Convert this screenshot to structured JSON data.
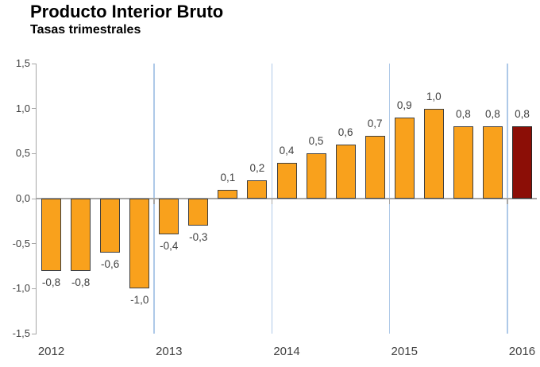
{
  "header": {
    "title": "Producto Interior Bruto",
    "subtitle": "Tasas trimestrales"
  },
  "chart_data": {
    "type": "bar",
    "title": "Producto Interior Bruto",
    "subtitle": "Tasas trimestrales",
    "xlabel": "",
    "ylabel": "",
    "ylim": [
      -1.5,
      1.5
    ],
    "y_ticks": [
      {
        "label": "1,5",
        "value": 1.5
      },
      {
        "label": "1,0",
        "value": 1.0
      },
      {
        "label": "0,5",
        "value": 0.5
      },
      {
        "label": "0,0",
        "value": 0.0
      },
      {
        "label": "-0,5",
        "value": -0.5
      },
      {
        "label": "-1,0",
        "value": -1.0
      },
      {
        "label": "-1,5",
        "value": -1.5
      }
    ],
    "groups": [
      {
        "label": "2012",
        "count": 4
      },
      {
        "label": "2013",
        "count": 4
      },
      {
        "label": "2014",
        "count": 4
      },
      {
        "label": "2015",
        "count": 4
      },
      {
        "label": "2016",
        "count": 1
      }
    ],
    "values": [
      -0.8,
      -0.8,
      -0.6,
      -1.0,
      -0.4,
      -0.3,
      0.1,
      0.2,
      0.4,
      0.5,
      0.6,
      0.7,
      0.9,
      1.0,
      0.8,
      0.8,
      0.8
    ],
    "labels": [
      "-0,8",
      "-0,8",
      "-0,6",
      "-1,0",
      "-0,4",
      "-0,3",
      "0,1",
      "0,2",
      "0,4",
      "0,5",
      "0,6",
      "0,7",
      "0,9",
      "1,0",
      "0,8",
      "0,8",
      "0,8"
    ],
    "highlight_index": 16,
    "grid": "vertical-year-separators",
    "legend": null,
    "colors": {
      "bar": "#f9a11c",
      "bar_border": "#3f3f3f",
      "highlight": "#8c0e06",
      "highlight_border": "#262626",
      "gridline": "#aec9e8",
      "axis": "#a6a6a6",
      "label_text": "#404040",
      "title_text": "#000000"
    }
  }
}
